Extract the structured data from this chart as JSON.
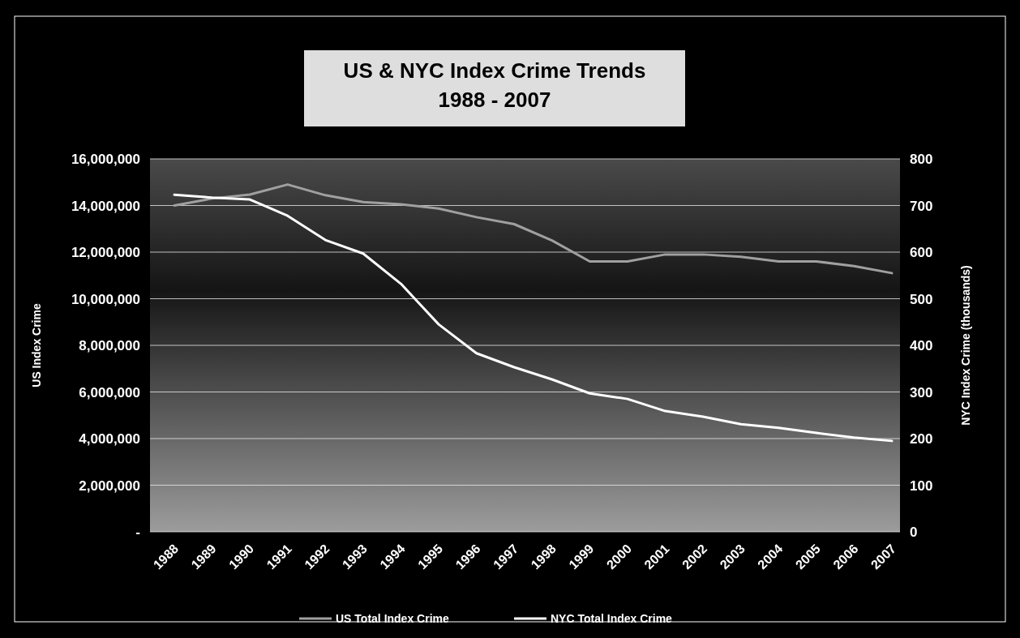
{
  "chart_data": {
    "type": "line",
    "title": "US & NYC Index Crime Trends\n1988 - 2007",
    "ylabel": "US Index Crime",
    "y2label": "NYC Index Crime (thousands)",
    "categories": [
      "1988",
      "1989",
      "1990",
      "1991",
      "1992",
      "1993",
      "1994",
      "1995",
      "1996",
      "1997",
      "1998",
      "1999",
      "2000",
      "2001",
      "2002",
      "2003",
      "2004",
      "2005",
      "2006",
      "2007"
    ],
    "series": [
      {
        "name": "US Total Index Crime",
        "color": "#a0a0a0",
        "values": [
          14000000,
          14300000,
          14470000,
          14900000,
          14440000,
          14150000,
          14050000,
          13870000,
          13500000,
          13200000,
          12500000,
          11600000,
          11600000,
          11900000,
          11900000,
          11800000,
          11600000,
          11600000,
          11400000,
          11100000
        ]
      },
      {
        "name": "NYC Total Index Crime",
        "color": "#ffffff",
        "axis": "y2",
        "values": [
          723,
          717,
          713,
          678,
          626,
          597,
          532,
          445,
          383,
          353,
          327,
          297,
          285,
          259,
          247,
          231,
          223,
          212,
          202,
          195
        ]
      }
    ],
    "ylim": [
      0,
      16000000
    ],
    "yticks": [
      {
        "value": 0,
        "label": "-"
      },
      {
        "value": 2000000,
        "label": "2,000,000"
      },
      {
        "value": 4000000,
        "label": "4,000,000"
      },
      {
        "value": 6000000,
        "label": "6,000,000"
      },
      {
        "value": 8000000,
        "label": "8,000,000"
      },
      {
        "value": 10000000,
        "label": "10,000,000"
      },
      {
        "value": 12000000,
        "label": "12,000,000"
      },
      {
        "value": 14000000,
        "label": "14,000,000"
      },
      {
        "value": 16000000,
        "label": "16,000,000"
      }
    ],
    "y2lim": [
      0,
      800
    ],
    "y2ticks": [
      0,
      100,
      200,
      300,
      400,
      500,
      600,
      700,
      800
    ],
    "grid": "y",
    "legend": "bottom",
    "marker": "none",
    "line_style": "solid"
  }
}
